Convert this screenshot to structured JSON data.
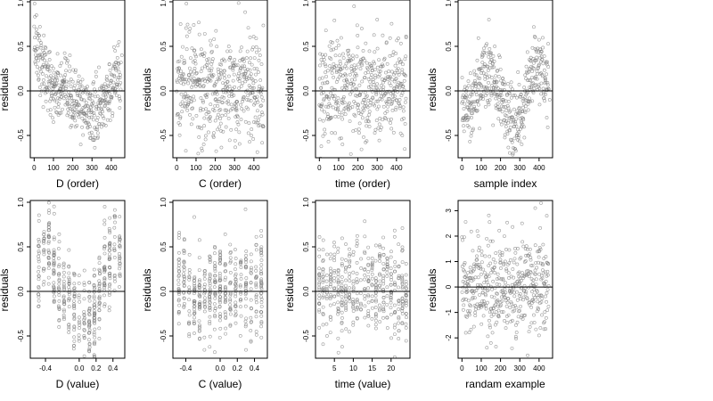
{
  "figure": {
    "layout": "2x4 grid of residual scatter plots",
    "background": "#ffffff",
    "point_style": "open circle",
    "point_color": "#7a7a7a",
    "reference_line_color": "#000000"
  },
  "chart_data": [
    {
      "type": "scatter",
      "xlabel": "D (order)",
      "ylabel": "residuals",
      "xlim": [
        -20,
        470
      ],
      "ylim": [
        -0.75,
        1.02
      ],
      "xticks": [
        0,
        100,
        200,
        300,
        400
      ],
      "xtick_labels": [
        "0",
        "100",
        "200",
        "300",
        "400"
      ],
      "yticks": [
        -0.5,
        0,
        0.5,
        1.0
      ],
      "ytick_labels": [
        "-0.5",
        "0.0",
        "0.5",
        "1.0"
      ],
      "hline": 0,
      "n_points": 450,
      "x_domain": [
        0,
        450
      ],
      "pattern": "sorted by D: high residuals near 0 and 380-450, dip near 250-320",
      "points": [
        [
          2,
          0.98
        ],
        [
          12,
          0.85
        ],
        [
          30,
          0.72
        ],
        [
          60,
          0.48
        ],
        [
          80,
          0.35
        ],
        [
          110,
          0.12
        ],
        [
          150,
          0.05
        ],
        [
          190,
          -0.05
        ],
        [
          230,
          -0.15
        ],
        [
          260,
          -0.25
        ],
        [
          290,
          -0.4
        ],
        [
          310,
          -0.55
        ],
        [
          330,
          -0.3
        ],
        [
          360,
          0.05
        ],
        [
          390,
          0.3
        ],
        [
          420,
          0.45
        ],
        [
          440,
          0.55
        ],
        [
          455,
          0.4
        ],
        [
          100,
          -0.35
        ],
        [
          200,
          -0.3
        ]
      ]
    },
    {
      "type": "scatter",
      "xlabel": "C (order)",
      "ylabel": "residuals",
      "xlim": [
        -20,
        470
      ],
      "ylim": [
        -0.75,
        1.02
      ],
      "xticks": [
        0,
        100,
        200,
        300,
        400
      ],
      "xtick_labels": [
        "0",
        "100",
        "200",
        "300",
        "400"
      ],
      "yticks": [
        -0.5,
        0,
        0.5,
        1.0
      ],
      "ytick_labels": [
        "-0.5",
        "0.0",
        "0.5",
        "1.0"
      ],
      "hline": 0,
      "n_points": 450,
      "x_domain": [
        0,
        450
      ],
      "pattern": "no trend, homogeneous scatter",
      "points": [
        [
          20,
          0.75
        ],
        [
          50,
          0.98
        ],
        [
          90,
          0.45
        ],
        [
          140,
          -0.6
        ],
        [
          180,
          0.3
        ],
        [
          230,
          -0.45
        ],
        [
          270,
          0.5
        ],
        [
          310,
          -0.2
        ],
        [
          350,
          0.15
        ],
        [
          400,
          -0.35
        ],
        [
          440,
          0.3
        ],
        [
          120,
          0.1
        ],
        [
          200,
          -0.1
        ],
        [
          300,
          0.35
        ],
        [
          380,
          0.6
        ]
      ]
    },
    {
      "type": "scatter",
      "xlabel": "time (order)",
      "ylabel": "residuals",
      "xlim": [
        -20,
        470
      ],
      "ylim": [
        -0.75,
        1.02
      ],
      "xticks": [
        0,
        100,
        200,
        300,
        400
      ],
      "xtick_labels": [
        "0",
        "100",
        "200",
        "300",
        "400"
      ],
      "yticks": [
        -0.5,
        0,
        0.5,
        1.0
      ],
      "ytick_labels": [
        "-0.5",
        "0.0",
        "0.5",
        "1.0"
      ],
      "hline": 0,
      "n_points": 450,
      "x_domain": [
        0,
        450
      ],
      "pattern": "no trend, homogeneous scatter",
      "points": [
        [
          10,
          0.35
        ],
        [
          60,
          0.55
        ],
        [
          120,
          -0.6
        ],
        [
          180,
          0.95
        ],
        [
          220,
          0.7
        ],
        [
          260,
          -0.4
        ],
        [
          300,
          0.8
        ],
        [
          340,
          -0.3
        ],
        [
          380,
          0.4
        ],
        [
          430,
          -0.5
        ],
        [
          450,
          0.6
        ],
        [
          90,
          0.1
        ],
        [
          150,
          -0.2
        ],
        [
          240,
          0.2
        ],
        [
          400,
          -0.1
        ]
      ]
    },
    {
      "type": "scatter",
      "xlabel": "sample index",
      "ylabel": "residuals",
      "xlim": [
        -20,
        470
      ],
      "ylim": [
        -0.75,
        1.02
      ],
      "xticks": [
        0,
        100,
        200,
        300,
        400
      ],
      "xtick_labels": [
        "0",
        "100",
        "200",
        "300",
        "400"
      ],
      "yticks": [
        -0.5,
        0,
        0.5,
        1.0
      ],
      "ytick_labels": [
        "-0.5",
        "0.0",
        "0.5",
        "1.0"
      ],
      "hline": 0,
      "n_points": 450,
      "x_domain": [
        0,
        450
      ],
      "pattern": "wavy pattern: bumps near 140 and 350-420, dips near 280-320",
      "points": [
        [
          10,
          -0.2
        ],
        [
          50,
          -0.3
        ],
        [
          100,
          0.2
        ],
        [
          140,
          0.8
        ],
        [
          170,
          0.5
        ],
        [
          210,
          -0.1
        ],
        [
          250,
          -0.3
        ],
        [
          290,
          -0.55
        ],
        [
          310,
          -0.6
        ],
        [
          350,
          0.35
        ],
        [
          380,
          0.6
        ],
        [
          410,
          0.2
        ],
        [
          440,
          -0.3
        ],
        [
          455,
          -0.1
        ]
      ]
    },
    {
      "type": "scatter",
      "xlabel": "D (value)",
      "ylabel": "residuals",
      "xlim": [
        -0.58,
        0.54
      ],
      "ylim": [
        -0.75,
        1.02
      ],
      "xticks": [
        -0.4,
        0.0,
        0.2,
        0.4
      ],
      "xtick_labels": [
        "-0.4",
        "0.0",
        "0.2",
        "0.4"
      ],
      "yticks": [
        -0.5,
        0,
        0.5,
        1.0
      ],
      "ytick_labels": [
        "-0.5",
        "0.0",
        "0.5",
        "1.0"
      ],
      "hline": 0,
      "n_points": 450,
      "pattern": "points in vertical bands at discrete D values",
      "x_levels": [
        -0.48,
        -0.42,
        -0.36,
        -0.3,
        -0.24,
        -0.18,
        -0.12,
        -0.06,
        0.0,
        0.06,
        0.12,
        0.18,
        0.24,
        0.3,
        0.36,
        0.42,
        0.48
      ],
      "level_centers": [
        0.3,
        0.5,
        0.6,
        0.3,
        0.0,
        -0.1,
        -0.05,
        -0.15,
        -0.2,
        -0.25,
        -0.35,
        -0.3,
        0.0,
        0.2,
        0.3,
        0.4,
        0.4
      ]
    },
    {
      "type": "scatter",
      "xlabel": "C (value)",
      "ylabel": "residuals",
      "xlim": [
        -0.55,
        0.55
      ],
      "ylim": [
        -0.75,
        1.02
      ],
      "xticks": [
        -0.4,
        0.0,
        0.2,
        0.4
      ],
      "xtick_labels": [
        "-0.4",
        "0.0",
        "0.2",
        "0.4"
      ],
      "yticks": [
        -0.5,
        0,
        0.5,
        1.0
      ],
      "ytick_labels": [
        "-0.5",
        "0.0",
        "0.5",
        "1.0"
      ],
      "hline": 0,
      "n_points": 450,
      "pattern": "points in vertical bands, no trend",
      "x_levels": [
        -0.48,
        -0.42,
        -0.36,
        -0.3,
        -0.24,
        -0.18,
        -0.12,
        -0.06,
        0.0,
        0.06,
        0.12,
        0.18,
        0.24,
        0.3,
        0.36,
        0.42,
        0.48
      ],
      "level_centers": [
        0.1,
        0.15,
        0.0,
        -0.05,
        -0.1,
        -0.05,
        0.0,
        0.05,
        0.0,
        -0.05,
        0.0,
        0.05,
        0.1,
        0.05,
        0.0,
        0.05,
        0.1
      ]
    },
    {
      "type": "scatter",
      "xlabel": "time (value)",
      "ylabel": "residuals",
      "xlim": [
        0,
        25
      ],
      "ylim": [
        -0.75,
        1.02
      ],
      "xticks": [
        5,
        10,
        15,
        20
      ],
      "xtick_labels": [
        "5",
        "10",
        "15",
        "20"
      ],
      "yticks": [
        -0.5,
        0,
        0.5,
        1.0
      ],
      "ytick_labels": [
        "-0.5",
        "0.0",
        "0.5",
        "1.0"
      ],
      "hline": 0,
      "n_points": 450,
      "pattern": "points in vertical bands at integer time values 1-24, no trend",
      "x_levels": [
        1,
        2,
        3,
        4,
        5,
        6,
        7,
        8,
        9,
        10,
        11,
        12,
        13,
        14,
        15,
        16,
        17,
        18,
        19,
        20,
        21,
        22,
        23,
        24
      ],
      "level_centers": [
        0.05,
        0.1,
        0.0,
        0.05,
        0.1,
        0.0,
        0.0,
        0.05,
        0.1,
        0.05,
        0.1,
        0.15,
        0.1,
        0.0,
        0.05,
        0.0,
        0.05,
        0.0,
        0.0,
        0.05,
        0.0,
        -0.05,
        0.0,
        0.05
      ]
    },
    {
      "type": "scatter",
      "xlabel": "randam example",
      "ylabel": "residuals",
      "xlim": [
        -20,
        470
      ],
      "ylim": [
        -2.8,
        3.4
      ],
      "xticks": [
        0,
        100,
        200,
        300,
        400
      ],
      "xtick_labels": [
        "0",
        "100",
        "200",
        "300",
        "400"
      ],
      "yticks": [
        -2,
        -1,
        0,
        1,
        2,
        3
      ],
      "ytick_labels": [
        "-2",
        "-1",
        "0",
        "1",
        "2",
        "3"
      ],
      "hline": 0,
      "n_points": 450,
      "x_domain": [
        0,
        450
      ],
      "pattern": "random normal noise, sd about 1",
      "points": [
        [
          20,
          -1.8
        ],
        [
          80,
          2.2
        ],
        [
          150,
          -2.2
        ],
        [
          220,
          2.0
        ],
        [
          280,
          -1.5
        ],
        [
          330,
          1.5
        ],
        [
          380,
          3.1
        ],
        [
          410,
          3.3
        ],
        [
          440,
          2.8
        ],
        [
          100,
          0.5
        ],
        [
          200,
          -0.6
        ],
        [
          300,
          0.2
        ],
        [
          360,
          -0.8
        ]
      ]
    }
  ]
}
